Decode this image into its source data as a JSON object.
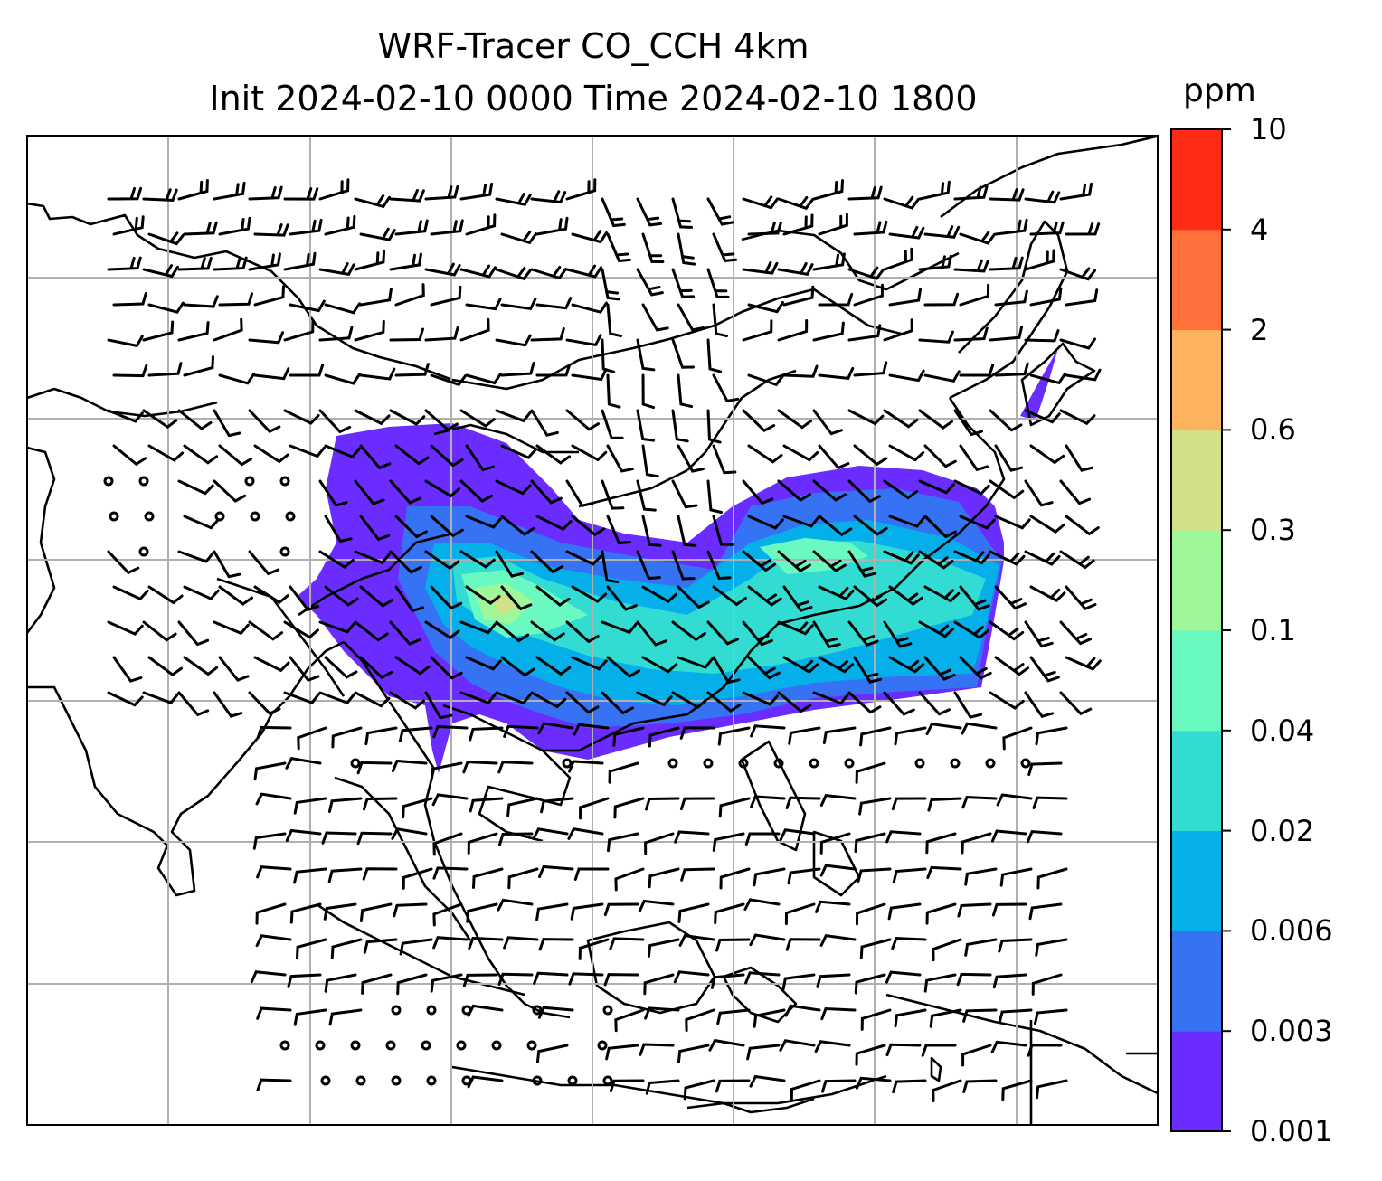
{
  "title": {
    "line1": "WRF-Tracer CO_CCH 4km",
    "line2": "Init 2024-02-10 0000 Time 2024-02-10 1800"
  },
  "colorbar": {
    "unit": "ppm",
    "ticks": [
      "0.001",
      "0.003",
      "0.006",
      "0.02",
      "0.04",
      "0.1",
      "0.3",
      "0.6",
      "2",
      "4",
      "10"
    ],
    "colors": [
      "#6a2cff",
      "#3572f4",
      "#05b0ea",
      "#32dcd2",
      "#6afac1",
      "#9ef89a",
      "#d2e088",
      "#fdb35e",
      "#ff7139",
      "#ff2b17"
    ]
  },
  "map": {
    "gridlines": true,
    "field": "CO_CCH tracer concentration",
    "wind_barbs": true
  }
}
